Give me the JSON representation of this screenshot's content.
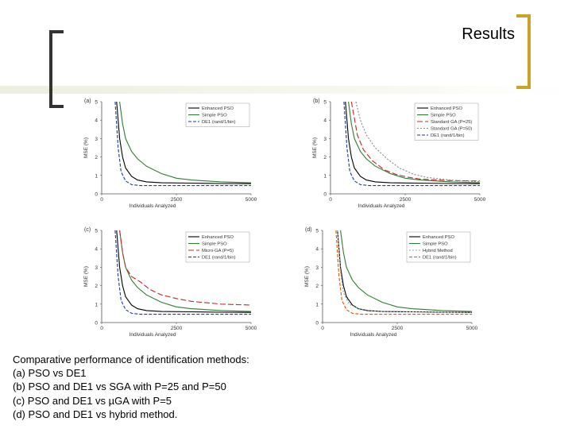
{
  "title": "Results",
  "caption": [
    "Comparative performance of identification methods:",
    "(a) PSO vs DE1",
    "(b) PSO and DE1 vs SGA with P=25 and P=50",
    "(c) PSO and DE1 vs µGA with P=5",
    "(d) PSO and DE1 vs hybrid method."
  ],
  "colors": {
    "bracket_left": "#333333",
    "bracket_right": "#c9a227"
  },
  "chart_data": [
    {
      "panel": "(a)",
      "type": "line",
      "xlabel": "Individuals Analyzed",
      "ylabel": "MSE (%)",
      "xlim": [
        0,
        5000
      ],
      "ylim": [
        0,
        5
      ],
      "xticks": [
        "0",
        "2500",
        "5000"
      ],
      "yticks": [
        "0",
        "1",
        "2",
        "3",
        "4",
        "5"
      ],
      "legend_position": "top-right",
      "series": [
        {
          "name": "Enhanced PSO",
          "color": "#000000",
          "dash": "",
          "x": [
            500,
            600,
            700,
            800,
            1000,
            1200,
            1500,
            2000,
            3000,
            4000,
            5000
          ],
          "y": [
            5,
            3.0,
            2.0,
            1.4,
            0.95,
            0.75,
            0.65,
            0.6,
            0.58,
            0.56,
            0.55
          ]
        },
        {
          "name": "Simple PSO",
          "color": "#2e7d32",
          "dash": "",
          "x": [
            600,
            700,
            800,
            1000,
            1200,
            1500,
            2000,
            2500,
            3000,
            4000,
            5000
          ],
          "y": [
            5,
            3.8,
            3.0,
            2.3,
            1.9,
            1.5,
            1.1,
            0.85,
            0.75,
            0.65,
            0.6
          ]
        },
        {
          "name": "DE1 (rand/1/bin)",
          "color": "#1f3a93",
          "dash": "4,2",
          "x": [
            450,
            550,
            650,
            800,
            1000,
            1300,
            2000,
            5000
          ],
          "y": [
            5,
            2.5,
            1.2,
            0.7,
            0.5,
            0.45,
            0.45,
            0.45
          ]
        }
      ]
    },
    {
      "panel": "(b)",
      "type": "line",
      "xlabel": "Individuals Analyzed",
      "ylabel": "MSE (%)",
      "xlim": [
        0,
        5000
      ],
      "ylim": [
        0,
        5
      ],
      "xticks": [
        "0",
        "2500",
        "5000"
      ],
      "yticks": [
        "0",
        "1",
        "2",
        "3",
        "4",
        "5"
      ],
      "legend_position": "top-right",
      "series": [
        {
          "name": "Enhanced PSO",
          "color": "#000000",
          "dash": "",
          "x": [
            500,
            600,
            700,
            800,
            1000,
            1200,
            1500,
            2000,
            3000,
            4000,
            5000
          ],
          "y": [
            5,
            3.0,
            2.0,
            1.4,
            0.95,
            0.75,
            0.65,
            0.6,
            0.58,
            0.56,
            0.55
          ]
        },
        {
          "name": "Simple PSO",
          "color": "#2e7d32",
          "dash": "",
          "x": [
            600,
            700,
            800,
            1000,
            1200,
            1500,
            2000,
            2500,
            3000,
            4000,
            5000
          ],
          "y": [
            5,
            3.8,
            3.0,
            2.3,
            1.9,
            1.5,
            1.1,
            0.85,
            0.75,
            0.65,
            0.6
          ]
        },
        {
          "name": "Standard GA (P=25)",
          "color": "#c62828",
          "dash": "7,3",
          "x": [
            700,
            900,
            1100,
            1400,
            1800,
            2200,
            2600,
            3000,
            4000,
            5000
          ],
          "y": [
            5,
            3.2,
            2.4,
            1.8,
            1.3,
            1.05,
            0.9,
            0.8,
            0.72,
            0.7
          ]
        },
        {
          "name": "Standard GA (P=50)",
          "color": "#888888",
          "dash": "2,2",
          "x": [
            850,
            1000,
            1200,
            1500,
            1900,
            2300,
            2800,
            3200,
            4000,
            5000
          ],
          "y": [
            5,
            4.0,
            3.2,
            2.5,
            1.9,
            1.4,
            1.05,
            0.9,
            0.75,
            0.65
          ]
        },
        {
          "name": "DE1 (rand/1/bin)",
          "color": "#1f3a93",
          "dash": "4,2",
          "x": [
            450,
            550,
            650,
            800,
            1000,
            1300,
            2000,
            5000
          ],
          "y": [
            5,
            2.5,
            1.2,
            0.7,
            0.5,
            0.45,
            0.45,
            0.45
          ]
        }
      ]
    },
    {
      "panel": "(c)",
      "type": "line",
      "xlabel": "Individuals Analyzed",
      "ylabel": "MSE (%)",
      "xlim": [
        0,
        5000
      ],
      "ylim": [
        0,
        5
      ],
      "xticks": [
        "0",
        "2500",
        "5000"
      ],
      "yticks": [
        "0",
        "1",
        "2",
        "3",
        "4",
        "5"
      ],
      "legend_position": "top-right",
      "series": [
        {
          "name": "Enhanced PSO",
          "color": "#000000",
          "dash": "",
          "x": [
            500,
            600,
            700,
            800,
            1000,
            1200,
            1500,
            2000,
            3000,
            4000,
            5000
          ],
          "y": [
            5,
            3.0,
            2.0,
            1.4,
            0.95,
            0.75,
            0.65,
            0.6,
            0.58,
            0.56,
            0.55
          ]
        },
        {
          "name": "Simple PSO",
          "color": "#2e7d32",
          "dash": "",
          "x": [
            600,
            700,
            800,
            1000,
            1200,
            1500,
            2000,
            2500,
            3000,
            4000,
            5000
          ],
          "y": [
            5,
            3.8,
            3.0,
            2.3,
            1.9,
            1.5,
            1.1,
            0.85,
            0.75,
            0.65,
            0.6
          ]
        },
        {
          "name": "Micro-GA (P=5)",
          "color": "#c62828",
          "dash": "7,3",
          "x": [
            600,
            700,
            800,
            1000,
            1300,
            1600,
            2000,
            2500,
            3000,
            4000,
            5000
          ],
          "y": [
            5,
            3.8,
            3.0,
            2.5,
            2.2,
            1.8,
            1.5,
            1.3,
            1.15,
            1.0,
            0.95
          ]
        },
        {
          "name": "DE1 (rand/1/bin)",
          "color": "#1f3a93",
          "dash": "4,2",
          "x": [
            450,
            550,
            650,
            800,
            1000,
            1300,
            2000,
            5000
          ],
          "y": [
            5,
            2.5,
            1.2,
            0.7,
            0.5,
            0.45,
            0.45,
            0.45
          ]
        }
      ]
    },
    {
      "panel": "(d)",
      "type": "line",
      "xlabel": "Individuals Analyzed",
      "ylabel": "MSE (%)",
      "xlim": [
        0,
        5000
      ],
      "ylim": [
        0,
        5
      ],
      "xticks": [
        "0",
        "2500",
        "5000"
      ],
      "yticks": [
        "0",
        "1",
        "2",
        "3",
        "4",
        "5"
      ],
      "legend_position": "top-right",
      "series": [
        {
          "name": "Enhanced PSO",
          "color": "#000000",
          "dash": "",
          "x": [
            500,
            600,
            700,
            800,
            1000,
            1200,
            1500,
            2000,
            3000,
            4000,
            5000
          ],
          "y": [
            5,
            3.0,
            2.0,
            1.4,
            0.95,
            0.75,
            0.65,
            0.6,
            0.58,
            0.56,
            0.55
          ]
        },
        {
          "name": "Simple PSO",
          "color": "#2e7d32",
          "dash": "",
          "x": [
            600,
            700,
            800,
            1000,
            1200,
            1500,
            2000,
            2500,
            3000,
            4000,
            5000
          ],
          "y": [
            5,
            3.8,
            3.0,
            2.3,
            1.9,
            1.5,
            1.1,
            0.85,
            0.75,
            0.65,
            0.6
          ]
        },
        {
          "name": "Hybrid Method",
          "color": "#999999",
          "dash": "2,2",
          "x": [
            500,
            600,
            700,
            900,
            1200,
            1600,
            2000,
            5000
          ],
          "y": [
            5,
            2.8,
            1.6,
            1.0,
            0.75,
            0.65,
            0.6,
            0.55
          ]
        },
        {
          "name": "DE1 (rand/1/bin)",
          "color": "#e65100",
          "dash": "4,2",
          "x": [
            450,
            550,
            650,
            800,
            1000,
            1300,
            2000,
            5000
          ],
          "y": [
            5,
            2.5,
            1.2,
            0.7,
            0.5,
            0.45,
            0.45,
            0.45
          ]
        }
      ]
    }
  ]
}
